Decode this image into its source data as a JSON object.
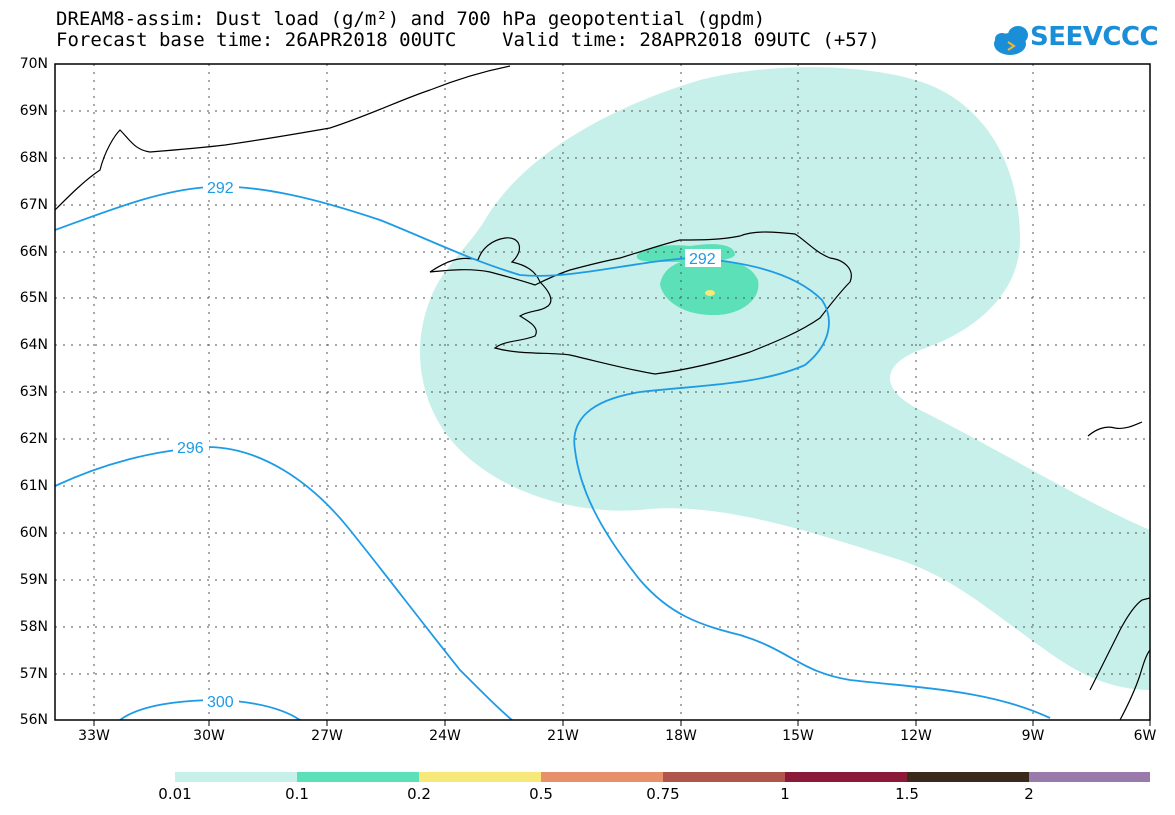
{
  "title": {
    "line1": "DREAM8-assim: Dust load (g/m²) and 700 hPa geopotential (gpdm)",
    "line2": "Forecast base time: 26APR2018 00UTC    Valid time: 28APR2018 09UTC (+57)"
  },
  "logo": {
    "text": "SEEVCCC",
    "color": "#1a8fd8"
  },
  "map": {
    "lat_labels": [
      "70N",
      "69N",
      "68N",
      "67N",
      "66N",
      "65N",
      "64N",
      "63N",
      "62N",
      "61N",
      "60N",
      "59N",
      "58N",
      "57N",
      "56N"
    ],
    "lon_labels": [
      "33W",
      "30W",
      "27W",
      "24W",
      "21W",
      "18W",
      "15W",
      "12W",
      "9W",
      "6W"
    ],
    "contour_labels": [
      "292",
      "292",
      "296",
      "300"
    ],
    "contour_color": "#1e9be6"
  },
  "colorbar": {
    "labels": [
      "0.01",
      "0.1",
      "0.2",
      "0.5",
      "0.75",
      "1",
      "1.5",
      "2"
    ],
    "colors": [
      "#c8f0ea",
      "#5ce0b8",
      "#f7e87a",
      "#e8906a",
      "#b0564c",
      "#8a1a38",
      "#3a2a1c",
      "#9a7aaa"
    ]
  }
}
